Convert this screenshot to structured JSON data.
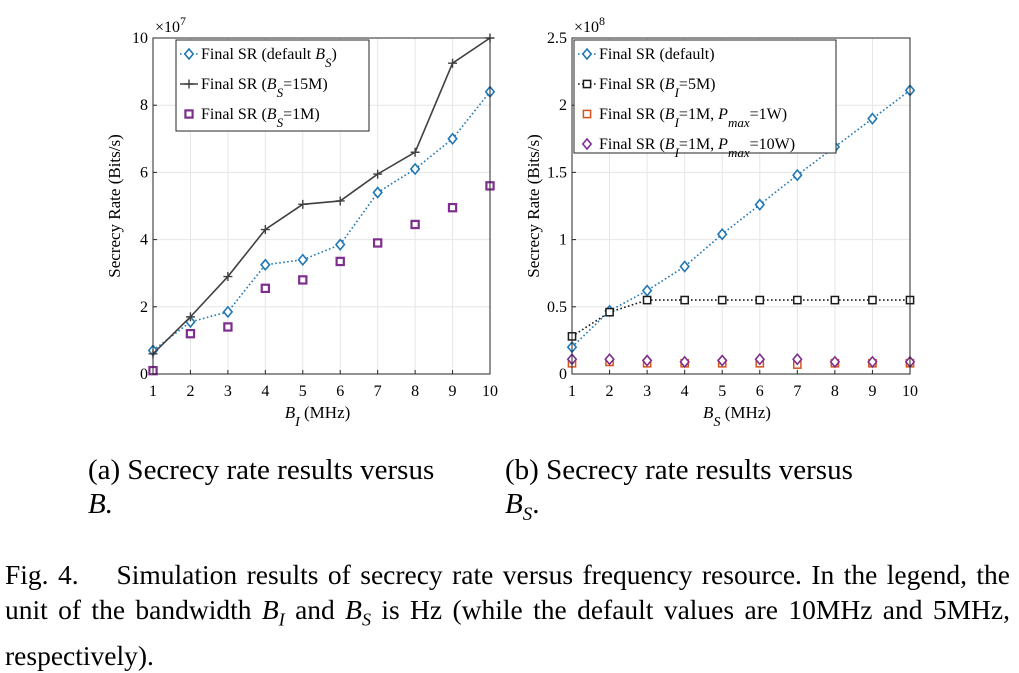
{
  "colors": {
    "default_series": "#1f77b4",
    "bs15m_series": "#404040",
    "bs1m_series": "#7e2f8e",
    "bi5m_series": "#1a1a1a",
    "pmax1w_series": "#d95319",
    "pmax10w_series": "#7e2f8e",
    "grid": "#e6e6e6"
  },
  "captions": {
    "sub_a_prefix": "(a) Secrecy rate results versus",
    "sub_a_math": "B.",
    "sub_b_prefix": "(b) Secrecy rate results versus",
    "sub_b_math": "B",
    "sub_b_math_sub": "S",
    "sub_b_math_end": ".",
    "fig_label": "Fig. 4.",
    "fig_text_1": "Simulation results of secrecy rate versus frequency resource. In the legend, the unit of the bandwidth",
    "fig_text_bi": "B",
    "fig_text_bi_sub": "I",
    "fig_text_and": "and",
    "fig_text_bs": "B",
    "fig_text_bs_sub": "S",
    "fig_text_2": "is Hz (while the default values are 10MHz and 5MHz, respectively)."
  },
  "chart_data": [
    {
      "type": "line",
      "ylabel": "Secrecy Rate (Bits/s)",
      "xlabel_main": "B",
      "xlabel_sub": "I",
      "xlabel_unit": " (MHz)",
      "exponent_label": "×10",
      "exponent_power": "7",
      "xlim": [
        1,
        10
      ],
      "ylim": [
        0,
        10
      ],
      "xticks": [
        1,
        2,
        3,
        4,
        5,
        6,
        7,
        8,
        9,
        10
      ],
      "yticks": [
        0,
        2,
        4,
        6,
        8,
        10
      ],
      "grid": true,
      "legend_position": "top-left",
      "x": [
        1,
        2,
        3,
        4,
        5,
        6,
        7,
        8,
        9,
        10
      ],
      "series": [
        {
          "name_main": "Final SR (default ",
          "name_sym": "B",
          "name_sub": "S",
          "name_end": ")",
          "marker": "diamond",
          "line": "dotted",
          "color": "#1f77b4",
          "values": [
            0.7,
            1.55,
            1.85,
            3.25,
            3.4,
            3.85,
            5.4,
            6.1,
            7.0,
            8.4
          ]
        },
        {
          "name_main": "Final SR (",
          "name_sym": "B",
          "name_sub": "S",
          "name_end": "=15M)",
          "marker": "plus",
          "line": "solid",
          "color": "#404040",
          "values": [
            0.6,
            1.7,
            2.9,
            4.3,
            5.05,
            5.15,
            5.95,
            6.6,
            9.25,
            10.0
          ]
        },
        {
          "name_main": "Final SR (",
          "name_sym": "B",
          "name_sub": "S",
          "name_end": "=1M)",
          "marker": "square-filled",
          "line": "none",
          "color": "#7e2f8e",
          "values": [
            0.1,
            1.2,
            1.4,
            2.55,
            2.8,
            3.35,
            3.9,
            4.45,
            4.95,
            5.6
          ]
        }
      ]
    },
    {
      "type": "line",
      "ylabel": "Secrecy Rate (Bits/s)",
      "xlabel_main": "B",
      "xlabel_sub": "S",
      "xlabel_unit": " (MHz)",
      "exponent_label": "×10",
      "exponent_power": "8",
      "xlim": [
        1,
        10
      ],
      "ylim": [
        0,
        2.5
      ],
      "xticks": [
        1,
        2,
        3,
        4,
        5,
        6,
        7,
        8,
        9,
        10
      ],
      "yticks": [
        0,
        0.5,
        1,
        1.5,
        2,
        2.5
      ],
      "ytick_labels": [
        "0",
        "0.5",
        "1",
        "1.5",
        "2",
        "2.5"
      ],
      "grid": true,
      "legend_position": "top-left",
      "x": [
        1,
        2,
        3,
        4,
        5,
        6,
        7,
        8,
        9,
        10
      ],
      "series": [
        {
          "name_main": "Final SR (default)",
          "name_sym": "",
          "name_sub": "",
          "name_end": "",
          "marker": "diamond",
          "line": "dotted",
          "color": "#1f77b4",
          "values": [
            0.2,
            0.47,
            0.62,
            0.8,
            1.04,
            1.26,
            1.48,
            1.69,
            1.9,
            2.11
          ]
        },
        {
          "name_main": "Final SR (",
          "name_sym": "B",
          "name_sub": "I",
          "name_end": "=5M)",
          "marker": "square",
          "line": "dotted",
          "color": "#1a1a1a",
          "values": [
            0.28,
            0.46,
            0.55,
            0.55,
            0.55,
            0.55,
            0.55,
            0.55,
            0.55,
            0.55
          ]
        },
        {
          "name_main": "Final SR (",
          "name_sym": "B",
          "name_sub": "I",
          "name_end": "=1M, ",
          "name_sym2": "P",
          "name_sub2": "max",
          "name_end2": "=1W)",
          "marker": "square",
          "line": "none",
          "color": "#d95319",
          "values": [
            0.08,
            0.09,
            0.08,
            0.08,
            0.08,
            0.08,
            0.07,
            0.08,
            0.08,
            0.08
          ]
        },
        {
          "name_main": "Final SR (",
          "name_sym": "B",
          "name_sub": "I",
          "name_end": "=1M, ",
          "name_sym2": "P",
          "name_sub2": "max",
          "name_end2": "=10W)",
          "marker": "diamond",
          "line": "none",
          "color": "#7e2f8e",
          "values": [
            0.11,
            0.11,
            0.1,
            0.09,
            0.1,
            0.11,
            0.11,
            0.09,
            0.09,
            0.09
          ]
        }
      ]
    }
  ]
}
